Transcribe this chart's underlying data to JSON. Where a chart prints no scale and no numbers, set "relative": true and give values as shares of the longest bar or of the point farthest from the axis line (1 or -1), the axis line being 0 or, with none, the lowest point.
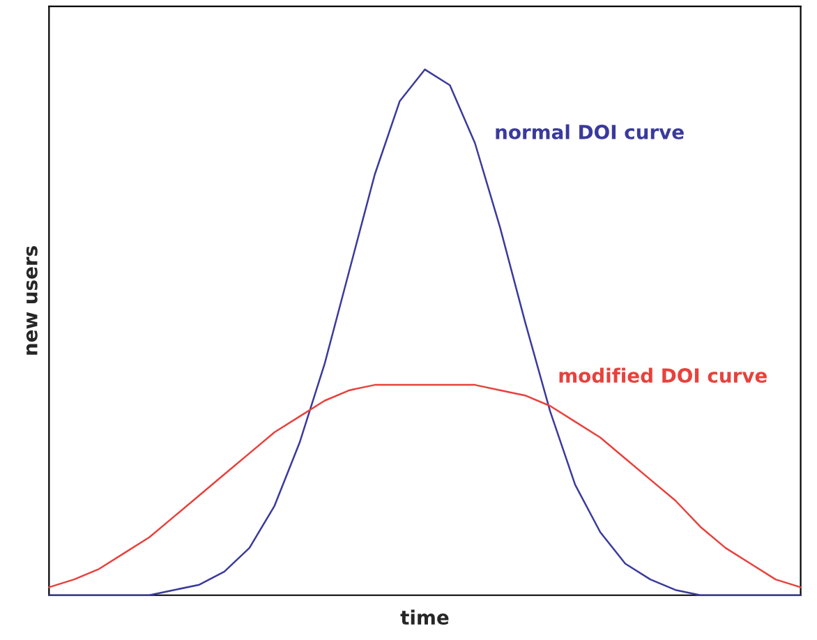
{
  "chart_data": {
    "type": "line",
    "relative": true,
    "xlabel": "time",
    "ylabel": "new users",
    "categories": [
      null,
      null,
      null,
      null,
      null,
      null,
      null,
      null,
      null,
      null,
      null,
      null,
      null,
      null,
      null,
      null,
      null,
      null,
      null,
      null,
      null,
      null,
      null,
      null,
      null,
      null,
      null,
      null,
      null,
      null,
      null
    ],
    "series": [
      {
        "name": "normal DOI curve",
        "color": "#3a3a9c",
        "values": [
          0,
          0,
          0,
          0,
          0,
          0.01,
          0.02,
          0.045,
          0.09,
          0.17,
          0.29,
          0.44,
          0.62,
          0.8,
          0.94,
          1.0,
          0.97,
          0.86,
          0.7,
          0.52,
          0.35,
          0.21,
          0.12,
          0.06,
          0.03,
          0.01,
          0,
          0,
          0,
          0,
          0
        ]
      },
      {
        "name": "modified DOI curve",
        "color": "#e8413c",
        "values": [
          0.015,
          0.03,
          0.05,
          0.08,
          0.11,
          0.15,
          0.19,
          0.23,
          0.27,
          0.31,
          0.34,
          0.37,
          0.39,
          0.4,
          0.4,
          0.4,
          0.4,
          0.4,
          0.39,
          0.38,
          0.36,
          0.33,
          0.3,
          0.26,
          0.22,
          0.18,
          0.13,
          0.09,
          0.06,
          0.03,
          0.015
        ]
      }
    ]
  }
}
